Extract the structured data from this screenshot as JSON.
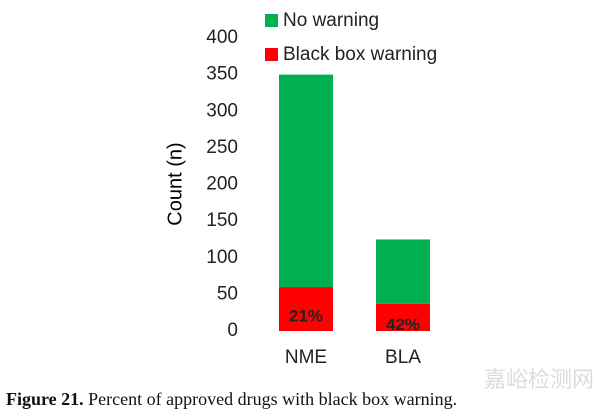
{
  "chart_data": {
    "type": "stacked_bar",
    "categories": [
      "NME",
      "BLA"
    ],
    "series": [
      {
        "name": "Black box warning",
        "color": "#ff0000",
        "values": [
          60,
          37
        ]
      },
      {
        "name": "No warning",
        "color": "#00b050",
        "values": [
          290,
          88
        ]
      }
    ],
    "annotations": [
      "21%",
      "42%"
    ],
    "ylabel": "Count (n)",
    "ylim": [
      0,
      400
    ],
    "yticks": [
      0,
      50,
      100,
      150,
      200,
      250,
      300,
      350,
      400
    ],
    "grid": false,
    "legend": "upper left"
  },
  "caption": {
    "label": "Figure 21.",
    "text": "Percent of approved drugs with black box warning."
  },
  "watermark": "嘉峪检测网"
}
